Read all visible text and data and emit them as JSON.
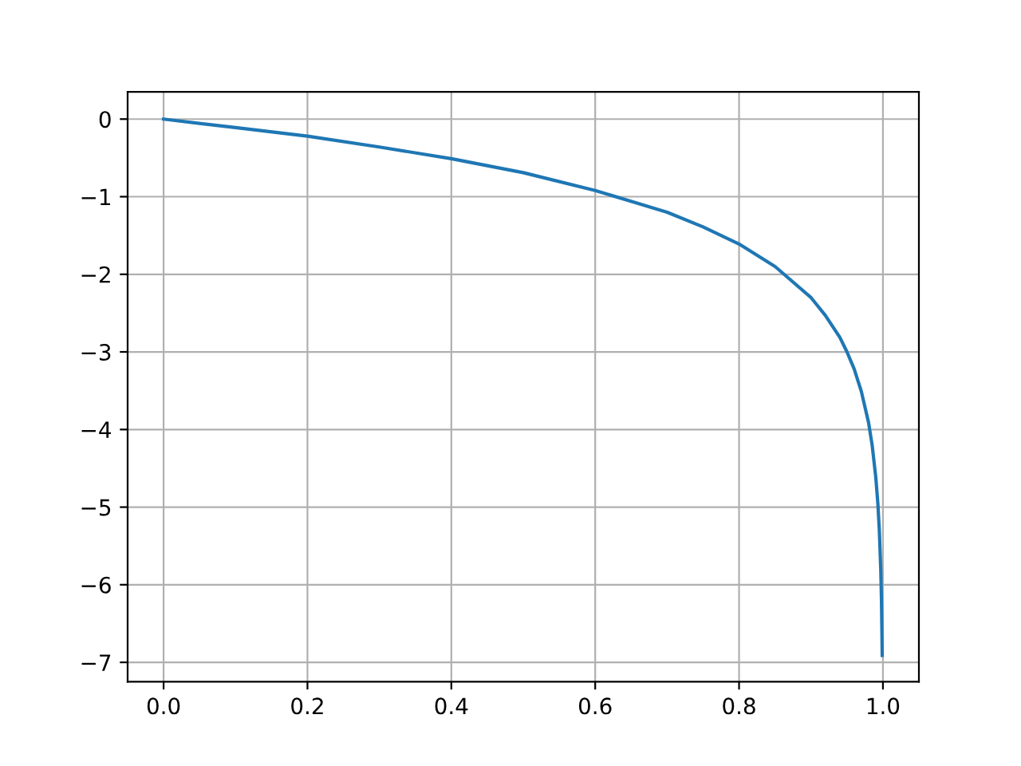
{
  "chart_data": {
    "type": "line",
    "x": [
      0,
      0.1,
      0.2,
      0.3,
      0.4,
      0.5,
      0.6,
      0.7,
      0.75,
      0.8,
      0.85,
      0.9,
      0.92,
      0.94,
      0.95,
      0.96,
      0.97,
      0.98,
      0.985,
      0.99,
      0.993,
      0.995,
      0.997,
      0.998,
      0.999
    ],
    "series": [
      {
        "color": "#1f77b4",
        "values": [
          0,
          -0.11,
          -0.22,
          -0.36,
          -0.51,
          -0.69,
          -0.92,
          -1.2,
          -1.39,
          -1.61,
          -1.9,
          -2.3,
          -2.53,
          -2.81,
          -3.0,
          -3.22,
          -3.51,
          -3.91,
          -4.2,
          -4.61,
          -4.96,
          -5.3,
          -5.81,
          -6.21,
          -6.91
        ]
      }
    ],
    "xlim": [
      -0.05,
      1.05
    ],
    "ylim": [
      -7.25,
      0.35
    ],
    "xticks": [
      {
        "value": 0,
        "label": "0.0"
      },
      {
        "value": 0.2,
        "label": "0.2"
      },
      {
        "value": 0.4,
        "label": "0.4"
      },
      {
        "value": 0.6,
        "label": "0.6"
      },
      {
        "value": 0.8,
        "label": "0.8"
      },
      {
        "value": 1,
        "label": "1.0"
      }
    ],
    "yticks": [
      {
        "value": 0,
        "label": "0"
      },
      {
        "value": -1,
        "label": "−1"
      },
      {
        "value": -2,
        "label": "−2"
      },
      {
        "value": -3,
        "label": "−3"
      },
      {
        "value": -4,
        "label": "−4"
      },
      {
        "value": -5,
        "label": "−5"
      },
      {
        "value": -6,
        "label": "−6"
      },
      {
        "value": -7,
        "label": "−7"
      }
    ],
    "grid": true,
    "marker": "none",
    "line_style": "solid"
  }
}
